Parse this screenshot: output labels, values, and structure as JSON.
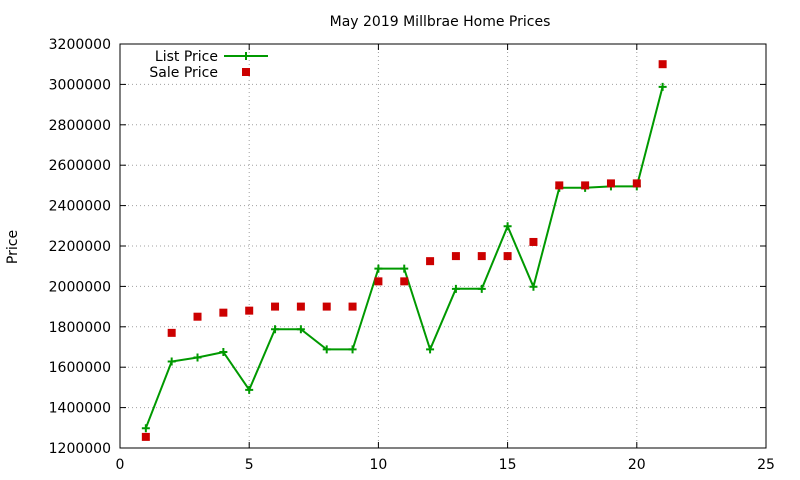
{
  "chart_data": {
    "type": "scatter",
    "title": "May 2019 Millbrae Home Prices",
    "xlabel": "",
    "ylabel": "Price",
    "xlim": [
      0,
      25
    ],
    "ylim": [
      1200000,
      3200000
    ],
    "x_ticks": [
      0,
      5,
      10,
      15,
      20,
      25
    ],
    "y_ticks": [
      1200000,
      1400000,
      1600000,
      1800000,
      2000000,
      2200000,
      2400000,
      2600000,
      2800000,
      3000000,
      3200000
    ],
    "grid": true,
    "legend_position": "top-left",
    "series": [
      {
        "name": "List Price",
        "style": "linespoints",
        "color": "#009900",
        "x": [
          1,
          2,
          3,
          4,
          5,
          6,
          7,
          8,
          9,
          10,
          11,
          12,
          13,
          14,
          15,
          16,
          17,
          18,
          19,
          20,
          21
        ],
        "values": [
          1298000,
          1628000,
          1648000,
          1675000,
          1488000,
          1788000,
          1788000,
          1688000,
          1688000,
          2088000,
          2088000,
          1688000,
          1988000,
          1988000,
          2298000,
          1998000,
          2488000,
          2488000,
          2495000,
          2495000,
          2988000
        ]
      },
      {
        "name": "Sale Price",
        "style": "points",
        "color": "#cc0000",
        "x": [
          1,
          2,
          3,
          4,
          5,
          6,
          7,
          8,
          9,
          10,
          11,
          12,
          13,
          14,
          15,
          16,
          17,
          18,
          19,
          20,
          21
        ],
        "values": [
          1255000,
          1770000,
          1850000,
          1870000,
          1880000,
          1900000,
          1900000,
          1900000,
          1900000,
          2025000,
          2025000,
          2125000,
          2150000,
          2150000,
          2150000,
          2220000,
          2500000,
          2500000,
          2510000,
          2510000,
          3100000
        ]
      }
    ]
  }
}
